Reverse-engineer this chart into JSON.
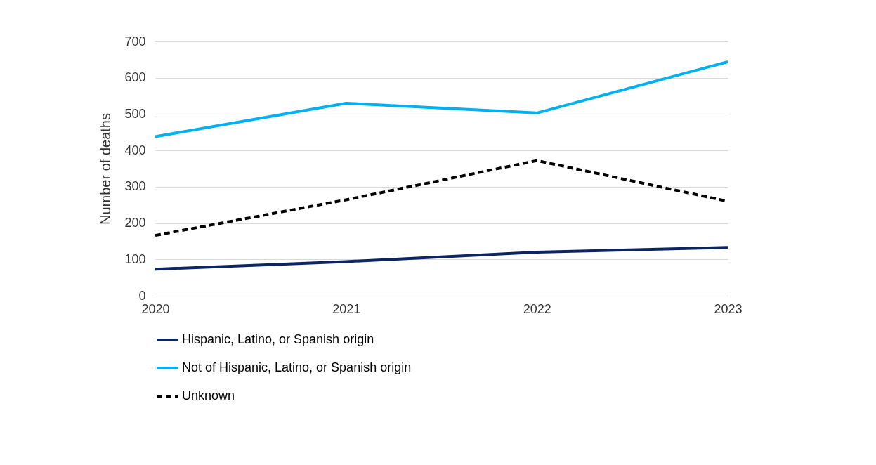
{
  "chart_data": {
    "type": "line",
    "ylabel": "Number of deaths",
    "categories": [
      "2020",
      "2021",
      "2022",
      "2023"
    ],
    "series": [
      {
        "name": "Hispanic, Latino, or Spanish origin",
        "color": "#0c2461",
        "values": [
          73,
          94,
          120,
          133
        ],
        "line_style": "solid"
      },
      {
        "name": "Not of Hispanic, Latino, or Spanish origin",
        "color": "#00b0f0",
        "values": [
          438,
          530,
          503,
          644
        ],
        "line_style": "solid"
      },
      {
        "name": "Unknown",
        "color": "#000000",
        "values": [
          166,
          264,
          372,
          260
        ],
        "line_style": "dashed"
      }
    ],
    "ylim": [
      0,
      700
    ],
    "yticks": [
      0,
      100,
      200,
      300,
      400,
      500,
      600,
      700
    ],
    "grid": "y",
    "legend": "bottom",
    "marker": "none"
  }
}
